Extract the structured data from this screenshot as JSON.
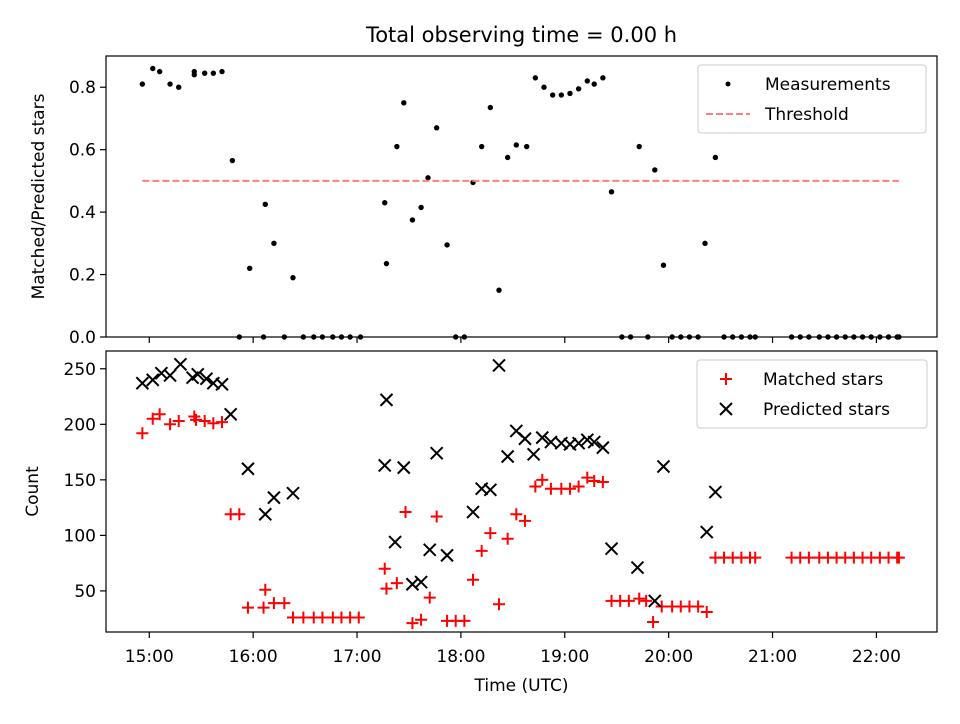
{
  "title": "Total observing time = 0.00 h",
  "colors": {
    "measurement": "#000000",
    "threshold": "#ff7f7f",
    "matched": "#ff0000",
    "predicted": "#000000",
    "axes": "#000000"
  },
  "chart_data": [
    {
      "type": "scatter",
      "title": "Total observing time = 0.00 h",
      "xlabel": "",
      "ylabel": "Matched/Predicted stars",
      "xlim": [
        "14:35",
        "22:35"
      ],
      "ylim": [
        0,
        0.9
      ],
      "yticks": [
        "0.0",
        "0.2",
        "0.4",
        "0.6",
        "0.8"
      ],
      "ytick_values": [
        0,
        0.2,
        0.4,
        0.6,
        0.8
      ],
      "grid": false,
      "legend_position": "upper right",
      "legend": [
        "Measurements",
        "Threshold"
      ],
      "series": [
        {
          "name": "Measurements",
          "marker": "point",
          "points": [
            [
              "14:56",
              0.81
            ],
            [
              "15:02",
              0.86
            ],
            [
              "15:06",
              0.85
            ],
            [
              "15:12",
              0.81
            ],
            [
              "15:17",
              0.8
            ],
            [
              "15:26",
              0.84
            ],
            [
              "15:26",
              0.85
            ],
            [
              "15:32",
              0.845
            ],
            [
              "15:37",
              0.845
            ],
            [
              "15:42",
              0.85
            ],
            [
              "15:48",
              0.565
            ],
            [
              "15:52",
              0.0
            ],
            [
              "15:58",
              0.22
            ],
            [
              "16:06",
              0.0
            ],
            [
              "16:07",
              0.425
            ],
            [
              "16:12",
              0.3
            ],
            [
              "16:18",
              0.0
            ],
            [
              "16:23",
              0.19
            ],
            [
              "16:29",
              0.0
            ],
            [
              "16:35",
              0.0
            ],
            [
              "16:40",
              0.0
            ],
            [
              "16:46",
              0.0
            ],
            [
              "16:51",
              0.0
            ],
            [
              "16:56",
              0.0
            ],
            [
              "17:02",
              0.0
            ],
            [
              "17:16",
              0.43
            ],
            [
              "17:17",
              0.235
            ],
            [
              "17:23",
              0.61
            ],
            [
              "17:27",
              0.75
            ],
            [
              "17:32",
              0.375
            ],
            [
              "17:37",
              0.415
            ],
            [
              "17:41",
              0.51
            ],
            [
              "17:46",
              0.67
            ],
            [
              "17:52",
              0.295
            ],
            [
              "17:57",
              0.0
            ],
            [
              "18:02",
              0.0
            ],
            [
              "18:07",
              0.495
            ],
            [
              "18:12",
              0.61
            ],
            [
              "18:17",
              0.735
            ],
            [
              "18:22",
              0.15
            ],
            [
              "18:27",
              0.575
            ],
            [
              "18:32",
              0.615
            ],
            [
              "18:38",
              0.61
            ],
            [
              "18:43",
              0.83
            ],
            [
              "18:48",
              0.8
            ],
            [
              "18:53",
              0.775
            ],
            [
              "18:58",
              0.775
            ],
            [
              "19:03",
              0.78
            ],
            [
              "19:08",
              0.795
            ],
            [
              "19:13",
              0.82
            ],
            [
              "19:17",
              0.81
            ],
            [
              "19:22",
              0.83
            ],
            [
              "19:27",
              0.465
            ],
            [
              "19:33",
              0.0
            ],
            [
              "19:38",
              0.0
            ],
            [
              "19:43",
              0.61
            ],
            [
              "19:48",
              0.0
            ],
            [
              "19:52",
              0.535
            ],
            [
              "19:57",
              0.23
            ],
            [
              "20:02",
              0.0
            ],
            [
              "20:07",
              0.0
            ],
            [
              "20:12",
              0.0
            ],
            [
              "20:17",
              0.0
            ],
            [
              "20:21",
              0.3
            ],
            [
              "20:27",
              0.575
            ],
            [
              "20:32",
              0.0
            ],
            [
              "20:37",
              0.0
            ],
            [
              "20:42",
              0.0
            ],
            [
              "20:47",
              0.0
            ],
            [
              "20:50",
              0.0
            ],
            [
              "21:11",
              0.0
            ],
            [
              "21:16",
              0.0
            ],
            [
              "21:21",
              0.0
            ],
            [
              "21:27",
              0.0
            ],
            [
              "21:32",
              0.0
            ],
            [
              "21:37",
              0.0
            ],
            [
              "21:42",
              0.0
            ],
            [
              "21:47",
              0.0
            ],
            [
              "21:52",
              0.0
            ],
            [
              "21:57",
              0.0
            ],
            [
              "22:02",
              0.0
            ],
            [
              "22:07",
              0.0
            ],
            [
              "22:12",
              0.0
            ],
            [
              "22:13",
              0.0
            ]
          ]
        },
        {
          "name": "Threshold",
          "type": "line",
          "style": "dashed",
          "points": [
            [
              "14:56",
              0.5
            ],
            [
              "22:13",
              0.5
            ]
          ]
        }
      ]
    },
    {
      "type": "scatter",
      "title": "",
      "xlabel": "Time (UTC)",
      "ylabel": "Count",
      "xlim": [
        "14:35",
        "22:35"
      ],
      "ylim": [
        13,
        266
      ],
      "yticks": [
        "50",
        "100",
        "150",
        "200",
        "250"
      ],
      "ytick_values": [
        50,
        100,
        150,
        200,
        250
      ],
      "xticks": [
        "15:00",
        "16:00",
        "17:00",
        "18:00",
        "19:00",
        "20:00",
        "21:00",
        "22:00"
      ],
      "grid": false,
      "legend_position": "upper right",
      "legend": [
        "Matched stars",
        "Predicted stars"
      ],
      "series": [
        {
          "name": "Matched stars",
          "marker": "plus",
          "points": [
            [
              "14:56",
              192
            ],
            [
              "15:02",
              205
            ],
            [
              "15:06",
              209
            ],
            [
              "15:12",
              200
            ],
            [
              "15:17",
              203
            ],
            [
              "15:26",
              207
            ],
            [
              "15:27",
              204
            ],
            [
              "15:32",
              203
            ],
            [
              "15:37",
              201
            ],
            [
              "15:42",
              202
            ],
            [
              "15:47",
              119
            ],
            [
              "15:52",
              119
            ],
            [
              "15:57",
              35
            ],
            [
              "16:06",
              35
            ],
            [
              "16:07",
              51
            ],
            [
              "16:12",
              39
            ],
            [
              "16:18",
              39
            ],
            [
              "16:23",
              26
            ],
            [
              "16:29",
              26
            ],
            [
              "16:35",
              26
            ],
            [
              "16:40",
              26
            ],
            [
              "16:46",
              26
            ],
            [
              "16:51",
              26
            ],
            [
              "16:56",
              26
            ],
            [
              "17:01",
              26
            ],
            [
              "17:16",
              70
            ],
            [
              "17:17",
              52
            ],
            [
              "17:23",
              57
            ],
            [
              "17:28",
              121
            ],
            [
              "17:32",
              21
            ],
            [
              "17:37",
              24
            ],
            [
              "17:42",
              44
            ],
            [
              "17:46",
              117
            ],
            [
              "17:52",
              23
            ],
            [
              "17:57",
              23
            ],
            [
              "18:02",
              23
            ],
            [
              "18:07",
              60
            ],
            [
              "18:12",
              86
            ],
            [
              "18:17",
              102
            ],
            [
              "18:22",
              38
            ],
            [
              "18:27",
              97
            ],
            [
              "18:32",
              119
            ],
            [
              "18:37",
              113
            ],
            [
              "18:43",
              144
            ],
            [
              "18:47",
              150
            ],
            [
              "18:52",
              142
            ],
            [
              "18:58",
              142
            ],
            [
              "19:03",
              142
            ],
            [
              "19:08",
              144
            ],
            [
              "19:13",
              152
            ],
            [
              "19:17",
              149
            ],
            [
              "19:22",
              148
            ],
            [
              "19:27",
              41
            ],
            [
              "19:32",
              41
            ],
            [
              "19:37",
              41
            ],
            [
              "19:43",
              43
            ],
            [
              "19:47",
              41
            ],
            [
              "19:51",
              22
            ],
            [
              "19:56",
              36
            ],
            [
              "20:02",
              36
            ],
            [
              "20:07",
              36
            ],
            [
              "20:12",
              36
            ],
            [
              "20:17",
              36
            ],
            [
              "20:22",
              31
            ],
            [
              "20:27",
              80
            ],
            [
              "20:32",
              80
            ],
            [
              "20:37",
              80
            ],
            [
              "20:42",
              80
            ],
            [
              "20:47",
              80
            ],
            [
              "20:50",
              80
            ],
            [
              "21:11",
              80
            ],
            [
              "21:16",
              80
            ],
            [
              "21:21",
              80
            ],
            [
              "21:27",
              80
            ],
            [
              "21:32",
              80
            ],
            [
              "21:37",
              80
            ],
            [
              "21:42",
              80
            ],
            [
              "21:47",
              80
            ],
            [
              "21:52",
              80
            ],
            [
              "21:57",
              80
            ],
            [
              "22:02",
              80
            ],
            [
              "22:07",
              80
            ],
            [
              "22:12",
              80
            ],
            [
              "22:13",
              80
            ]
          ]
        },
        {
          "name": "Predicted stars",
          "marker": "x",
          "points": [
            [
              "14:56",
              237
            ],
            [
              "15:02",
              240
            ],
            [
              "15:07",
              246
            ],
            [
              "15:12",
              244
            ],
            [
              "15:18",
              254
            ],
            [
              "15:25",
              242
            ],
            [
              "15:28",
              245
            ],
            [
              "15:33",
              241
            ],
            [
              "15:37",
              237
            ],
            [
              "15:42",
              236
            ],
            [
              "15:47",
              209
            ],
            [
              "15:57",
              160
            ],
            [
              "16:07",
              119
            ],
            [
              "16:12",
              134
            ],
            [
              "16:23",
              138
            ],
            [
              "17:16",
              163
            ],
            [
              "17:17",
              222
            ],
            [
              "17:22",
              94
            ],
            [
              "17:27",
              161
            ],
            [
              "17:32",
              56
            ],
            [
              "17:37",
              58
            ],
            [
              "17:42",
              87
            ],
            [
              "17:46",
              174
            ],
            [
              "17:52",
              82
            ],
            [
              "18:07",
              121
            ],
            [
              "18:12",
              142
            ],
            [
              "18:17",
              141
            ],
            [
              "18:22",
              253
            ],
            [
              "18:27",
              171
            ],
            [
              "18:32",
              194
            ],
            [
              "18:37",
              187
            ],
            [
              "18:42",
              173
            ],
            [
              "18:47",
              188
            ],
            [
              "18:52",
              184
            ],
            [
              "18:58",
              183
            ],
            [
              "19:03",
              182
            ],
            [
              "19:08",
              183
            ],
            [
              "19:13",
              186
            ],
            [
              "19:17",
              184
            ],
            [
              "19:22",
              179
            ],
            [
              "19:27",
              88
            ],
            [
              "19:42",
              71
            ],
            [
              "19:52",
              41
            ],
            [
              "19:57",
              162
            ],
            [
              "20:22",
              103
            ],
            [
              "20:27",
              139
            ]
          ]
        }
      ]
    }
  ]
}
